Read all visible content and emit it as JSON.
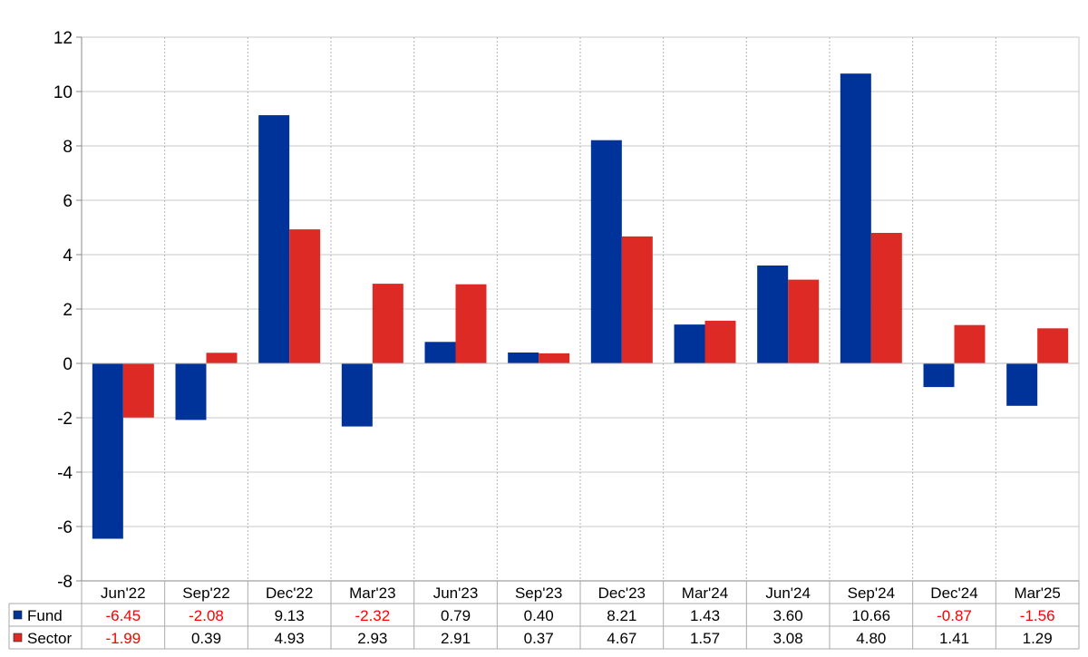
{
  "chart_data": {
    "type": "bar",
    "categories": [
      "Jun'22",
      "Sep'22",
      "Dec'22",
      "Mar'23",
      "Jun'23",
      "Sep'23",
      "Dec'23",
      "Mar'24",
      "Jun'24",
      "Sep'24",
      "Dec'24",
      "Mar'25"
    ],
    "series": [
      {
        "name": "Fund",
        "color": "#003399",
        "values": [
          -6.45,
          -2.08,
          9.13,
          -2.32,
          0.79,
          0.4,
          8.21,
          1.43,
          3.6,
          10.66,
          -0.87,
          -1.56
        ],
        "labels": [
          "-6.45",
          "-2.08",
          "9.13",
          "-2.32",
          "0.79",
          "0.40",
          "8.21",
          "1.43",
          "3.60",
          "10.66",
          "-0.87",
          "-1.56"
        ]
      },
      {
        "name": "Sector",
        "color": "#dd2a25",
        "values": [
          -1.99,
          0.39,
          4.93,
          2.93,
          2.91,
          0.37,
          4.67,
          1.57,
          3.08,
          4.8,
          1.41,
          1.29
        ],
        "labels": [
          "-1.99",
          "0.39",
          "4.93",
          "2.93",
          "2.91",
          "0.37",
          "4.67",
          "1.57",
          "3.08",
          "4.80",
          "1.41",
          "1.29"
        ]
      }
    ],
    "ylim": [
      -8,
      12
    ],
    "yticks": [
      "-8",
      "-6",
      "-4",
      "-2",
      "0",
      "2",
      "4",
      "6",
      "8",
      "10",
      "12"
    ],
    "ytick_values": [
      -8,
      -6,
      -4,
      -2,
      0,
      2,
      4,
      6,
      8,
      10,
      12
    ],
    "grid": true,
    "legend": "data-table",
    "negative_label_color": "#ff0000",
    "label_color": "#000000"
  }
}
